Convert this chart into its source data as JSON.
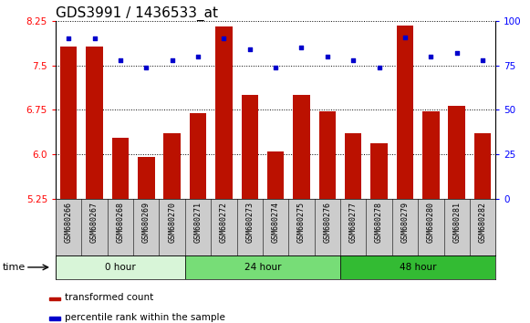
{
  "title": "GDS3991 / 1436533_at",
  "samples": [
    "GSM680266",
    "GSM680267",
    "GSM680268",
    "GSM680269",
    "GSM680270",
    "GSM680271",
    "GSM680272",
    "GSM680273",
    "GSM680274",
    "GSM680275",
    "GSM680276",
    "GSM680277",
    "GSM680278",
    "GSM680279",
    "GSM680280",
    "GSM680281",
    "GSM680282"
  ],
  "transformed_count": [
    7.82,
    7.82,
    6.28,
    5.95,
    6.35,
    6.7,
    8.15,
    7.0,
    6.05,
    7.0,
    6.72,
    6.35,
    6.18,
    8.18,
    6.72,
    6.82,
    6.35
  ],
  "percentile_rank": [
    90,
    90,
    78,
    74,
    78,
    80,
    90,
    84,
    74,
    85,
    80,
    78,
    74,
    91,
    80,
    82,
    78
  ],
  "ylim_left": [
    5.25,
    8.25
  ],
  "ylim_right": [
    0,
    100
  ],
  "yticks_left": [
    5.25,
    6.0,
    6.75,
    7.5,
    8.25
  ],
  "yticks_right": [
    0,
    25,
    50,
    75,
    100
  ],
  "bar_color": "#bb1100",
  "dot_color": "#0000cc",
  "grid_color": "#000000",
  "bg_color": "#ffffff",
  "groups": [
    {
      "label": "0 hour",
      "start": 0,
      "end": 5,
      "color": "#d8f5d8"
    },
    {
      "label": "24 hour",
      "start": 5,
      "end": 11,
      "color": "#77dd77"
    },
    {
      "label": "48 hour",
      "start": 11,
      "end": 17,
      "color": "#33bb33"
    }
  ],
  "xlabel": "time",
  "legend_bar_label": "transformed count",
  "legend_dot_label": "percentile rank within the sample",
  "title_fontsize": 11,
  "tick_fontsize": 7.5,
  "label_fontsize": 8.5
}
